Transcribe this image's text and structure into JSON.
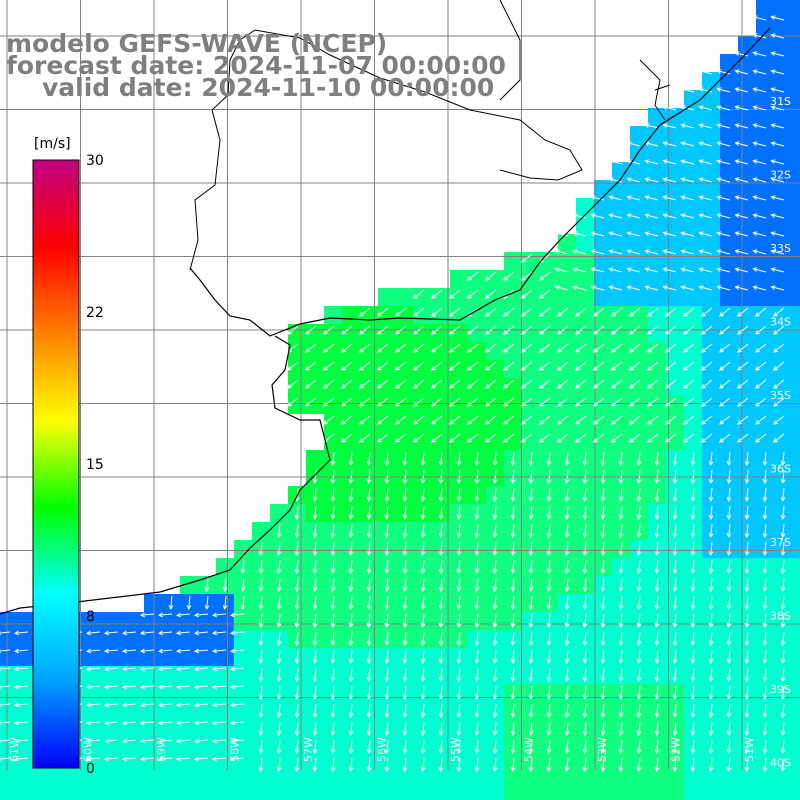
{
  "title": {
    "line1": "modelo GEFS-WAVE (NCEP)",
    "line2": "forecast date: 2024-11-07 00:00:00",
    "line3": "valid date: 2024-11-10 00:00:00"
  },
  "colorbar": {
    "unit": "[m/s]",
    "ticks": [
      "30",
      "22",
      "15",
      "8",
      "0"
    ],
    "tick_values": [
      30,
      22,
      15,
      8,
      0
    ],
    "range": [
      0,
      30
    ],
    "colors": [
      "#0000ff",
      "#00a0ff",
      "#00ffff",
      "#00ff00",
      "#ffff00",
      "#ff8000",
      "#ff0000",
      "#c00080"
    ]
  },
  "map": {
    "lon_labels": [
      "61W",
      "60W",
      "59W",
      "58W",
      "57W",
      "56W",
      "55W",
      "54W",
      "53W",
      "52W",
      "51W"
    ],
    "lat_labels": [
      "31S",
      "32S",
      "33S",
      "34S",
      "35S",
      "36S",
      "37S",
      "38S",
      "39S",
      "40S"
    ],
    "land_color": "#ffffff",
    "coast_color": "#000000",
    "grid_color": "#808080",
    "arrow_color": "#ffffff",
    "ocean_colors": {
      "calm": "#0070ff",
      "light": "#00c8ff",
      "moderate": "#00ffd0",
      "strong": "#10ff80",
      "max": "#00ff40"
    }
  }
}
